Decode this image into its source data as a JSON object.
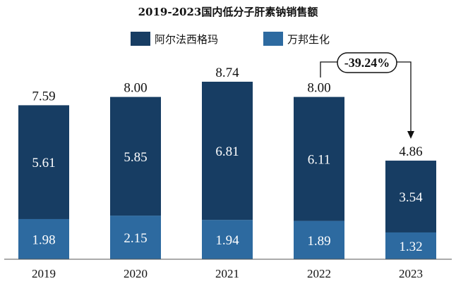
{
  "chart_data": {
    "type": "bar",
    "stacked": true,
    "title": "2019-2023国内低分子肝素钠销售额",
    "categories": [
      "2019",
      "2020",
      "2021",
      "2022",
      "2023"
    ],
    "series": [
      {
        "name": "阿尔法西格玛",
        "color": "#173d63",
        "values": [
          5.61,
          5.85,
          6.81,
          6.11,
          3.54
        ]
      },
      {
        "name": "万邦生化",
        "color": "#2d6aa0",
        "values": [
          1.98,
          2.15,
          1.94,
          1.89,
          1.32
        ]
      }
    ],
    "totals": [
      "7.59",
      "8.00",
      "8.74",
      "8.00",
      "4.86"
    ],
    "value_labels": [
      [
        "5.61",
        "5.85",
        "6.81",
        "6.11",
        "3.54"
      ],
      [
        "1.98",
        "2.15",
        "1.94",
        "1.89",
        "1.32"
      ]
    ],
    "annotation": {
      "text": "-39.24%",
      "from": "2022",
      "to": "2023"
    },
    "legend_position": "top-center",
    "ylim": [
      0,
      10
    ],
    "grid": false
  }
}
